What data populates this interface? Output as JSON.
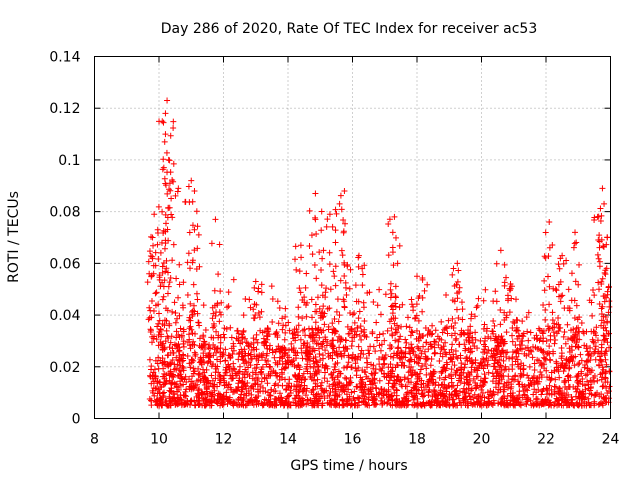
{
  "chart_data": {
    "type": "scatter",
    "title": "Day 286 of 2020, Rate Of TEC Index for receiver ac53",
    "xlabel": "GPS time / hours",
    "ylabel": "ROTI / TECUs",
    "xlim": [
      8,
      24
    ],
    "ylim": [
      0,
      0.14
    ],
    "xticks": [
      "8",
      "10",
      "12",
      "14",
      "16",
      "18",
      "20",
      "22",
      "24"
    ],
    "yticks": [
      "0",
      "0.02",
      "0.04",
      "0.06",
      "0.08",
      "0.1",
      "0.12",
      "0.14"
    ],
    "grid": true,
    "marker": "plus",
    "color": "#ff0000",
    "series": [
      {
        "name": "ROTI",
        "x_range": [
          9.7,
          24
        ],
        "typical_band": [
          0.005,
          0.035
        ],
        "peaks": [
          {
            "x": 10.25,
            "y": 0.123
          },
          {
            "x": 10.2,
            "y": 0.118
          },
          {
            "x": 10.2,
            "y": 0.11
          },
          {
            "x": 10.3,
            "y": 0.1
          },
          {
            "x": 10.15,
            "y": 0.097
          },
          {
            "x": 10.6,
            "y": 0.089
          },
          {
            "x": 11.0,
            "y": 0.092
          },
          {
            "x": 11.1,
            "y": 0.088
          },
          {
            "x": 9.85,
            "y": 0.079
          },
          {
            "x": 11.75,
            "y": 0.077
          },
          {
            "x": 9.8,
            "y": 0.07
          },
          {
            "x": 11.1,
            "y": 0.073
          },
          {
            "x": 14.85,
            "y": 0.087
          },
          {
            "x": 15.75,
            "y": 0.088
          },
          {
            "x": 15.6,
            "y": 0.083
          },
          {
            "x": 15.3,
            "y": 0.079
          },
          {
            "x": 17.3,
            "y": 0.078
          },
          {
            "x": 17.25,
            "y": 0.072
          },
          {
            "x": 14.4,
            "y": 0.067
          },
          {
            "x": 15.1,
            "y": 0.065
          },
          {
            "x": 22.1,
            "y": 0.076
          },
          {
            "x": 22.9,
            "y": 0.072
          },
          {
            "x": 23.75,
            "y": 0.089
          },
          {
            "x": 23.8,
            "y": 0.083
          },
          {
            "x": 23.6,
            "y": 0.078
          },
          {
            "x": 23.9,
            "y": 0.07
          },
          {
            "x": 22.5,
            "y": 0.063
          },
          {
            "x": 20.6,
            "y": 0.065
          },
          {
            "x": 19.25,
            "y": 0.06
          },
          {
            "x": 16.2,
            "y": 0.063
          },
          {
            "x": 13.0,
            "y": 0.053
          },
          {
            "x": 18.0,
            "y": 0.055
          },
          {
            "x": 20.9,
            "y": 0.052
          }
        ]
      }
    ]
  }
}
